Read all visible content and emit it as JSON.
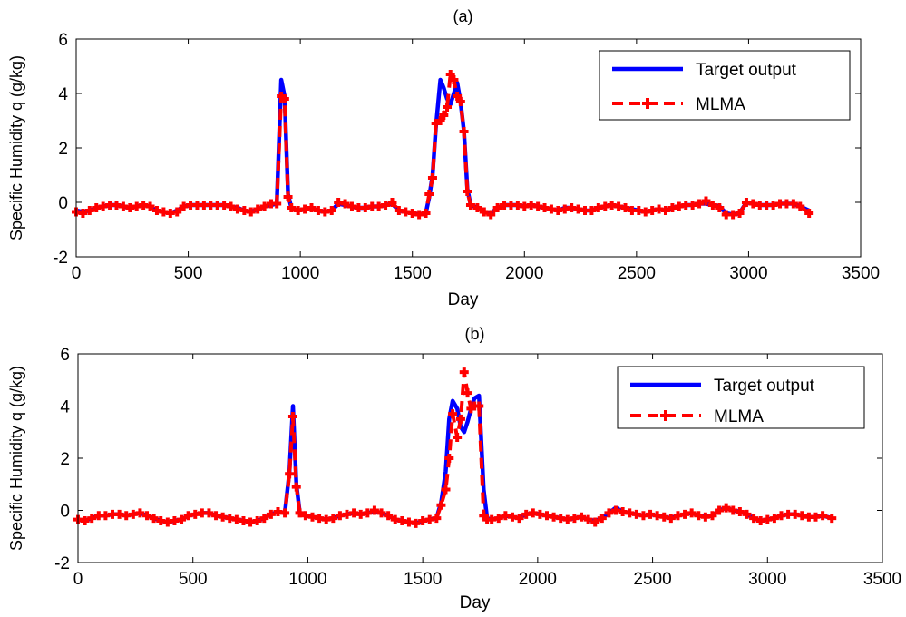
{
  "chart_data": [
    {
      "type": "line",
      "title": "(a)",
      "xlabel": "Day",
      "ylabel": "Specific Humidity q (g/kg)",
      "xlim": [
        0,
        3500
      ],
      "ylim": [
        -2,
        6
      ],
      "xticks": [
        0,
        500,
        1000,
        1500,
        2000,
        2500,
        3000,
        3500
      ],
      "yticks": [
        -2,
        0,
        2,
        4,
        6
      ],
      "legend_position": "top-right",
      "series": [
        {
          "name": "Target output",
          "color": "#0000ff",
          "style": "solid",
          "x": [
            0,
            30,
            60,
            90,
            120,
            150,
            180,
            210,
            240,
            270,
            300,
            330,
            360,
            390,
            420,
            450,
            480,
            510,
            540,
            570,
            600,
            630,
            660,
            690,
            720,
            750,
            780,
            810,
            840,
            870,
            895,
            915,
            930,
            945,
            960,
            990,
            1020,
            1050,
            1080,
            1110,
            1140,
            1170,
            1200,
            1230,
            1260,
            1290,
            1320,
            1350,
            1380,
            1410,
            1440,
            1470,
            1500,
            1530,
            1560,
            1575,
            1590,
            1605,
            1625,
            1640,
            1655,
            1670,
            1685,
            1700,
            1715,
            1730,
            1745,
            1760,
            1790,
            1820,
            1850,
            1880,
            1910,
            1940,
            1970,
            2000,
            2030,
            2060,
            2090,
            2120,
            2150,
            2180,
            2210,
            2240,
            2270,
            2300,
            2330,
            2360,
            2390,
            2420,
            2450,
            2480,
            2510,
            2540,
            2570,
            2600,
            2630,
            2660,
            2690,
            2720,
            2750,
            2780,
            2810,
            2840,
            2870,
            2900,
            2930,
            2960,
            2990,
            3020,
            3050,
            3080,
            3110,
            3140,
            3170,
            3200,
            3230,
            3270
          ],
          "y": [
            -0.3,
            -0.35,
            -0.3,
            -0.2,
            -0.15,
            -0.1,
            -0.1,
            -0.15,
            -0.2,
            -0.15,
            -0.1,
            -0.15,
            -0.3,
            -0.35,
            -0.4,
            -0.3,
            -0.15,
            -0.1,
            -0.1,
            -0.1,
            -0.1,
            -0.1,
            -0.1,
            -0.15,
            -0.2,
            -0.3,
            -0.35,
            -0.25,
            -0.15,
            -0.1,
            -0.05,
            4.5,
            3.9,
            0.3,
            -0.2,
            -0.3,
            -0.25,
            -0.2,
            -0.3,
            -0.35,
            -0.3,
            -0.05,
            -0.1,
            -0.15,
            -0.2,
            -0.2,
            -0.15,
            -0.15,
            -0.1,
            -0.05,
            -0.3,
            -0.35,
            -0.4,
            -0.45,
            -0.4,
            0.2,
            1.0,
            2.8,
            4.5,
            4.2,
            3.8,
            3.6,
            4.0,
            4.4,
            3.7,
            2.6,
            0.5,
            -0.1,
            -0.2,
            -0.35,
            -0.4,
            -0.2,
            -0.1,
            -0.1,
            -0.1,
            -0.15,
            -0.1,
            -0.15,
            -0.2,
            -0.25,
            -0.3,
            -0.2,
            -0.2,
            -0.25,
            -0.3,
            -0.3,
            -0.2,
            -0.15,
            -0.1,
            -0.15,
            -0.2,
            -0.25,
            -0.3,
            -0.35,
            -0.3,
            -0.25,
            -0.3,
            -0.2,
            -0.15,
            -0.1,
            -0.1,
            -0.05,
            -0.05,
            -0.1,
            -0.15,
            -0.4,
            -0.45,
            -0.4,
            0.0,
            -0.05,
            -0.1,
            -0.1,
            -0.1,
            -0.05,
            -0.05,
            -0.05,
            -0.15,
            -0.3
          ]
        },
        {
          "name": "MLMA",
          "color": "#ff0000",
          "style": "dash-marker",
          "x": [
            0,
            30,
            60,
            90,
            120,
            150,
            180,
            210,
            240,
            270,
            300,
            330,
            360,
            390,
            420,
            450,
            480,
            510,
            540,
            570,
            600,
            630,
            660,
            690,
            720,
            750,
            780,
            810,
            840,
            870,
            895,
            915,
            930,
            945,
            960,
            990,
            1020,
            1050,
            1080,
            1110,
            1140,
            1170,
            1200,
            1230,
            1260,
            1290,
            1320,
            1350,
            1380,
            1410,
            1440,
            1470,
            1500,
            1530,
            1560,
            1575,
            1590,
            1605,
            1625,
            1640,
            1655,
            1670,
            1685,
            1700,
            1715,
            1730,
            1745,
            1760,
            1790,
            1820,
            1850,
            1880,
            1910,
            1940,
            1970,
            2000,
            2030,
            2060,
            2090,
            2120,
            2150,
            2180,
            2210,
            2240,
            2270,
            2300,
            2330,
            2360,
            2390,
            2420,
            2450,
            2480,
            2510,
            2540,
            2570,
            2600,
            2630,
            2660,
            2690,
            2720,
            2750,
            2780,
            2810,
            2840,
            2870,
            2900,
            2930,
            2960,
            2990,
            3020,
            3050,
            3080,
            3110,
            3140,
            3170,
            3200,
            3230,
            3270
          ],
          "y": [
            -0.35,
            -0.4,
            -0.3,
            -0.2,
            -0.15,
            -0.1,
            -0.1,
            -0.15,
            -0.2,
            -0.15,
            -0.1,
            -0.15,
            -0.3,
            -0.35,
            -0.4,
            -0.35,
            -0.15,
            -0.1,
            -0.1,
            -0.1,
            -0.1,
            -0.1,
            -0.1,
            -0.15,
            -0.25,
            -0.3,
            -0.35,
            -0.25,
            -0.15,
            -0.05,
            -0.05,
            3.9,
            3.8,
            0.2,
            -0.2,
            -0.3,
            -0.25,
            -0.2,
            -0.3,
            -0.35,
            -0.3,
            0.0,
            -0.05,
            -0.15,
            -0.2,
            -0.2,
            -0.15,
            -0.15,
            -0.1,
            0.0,
            -0.3,
            -0.35,
            -0.4,
            -0.45,
            -0.4,
            0.3,
            0.9,
            2.9,
            3.0,
            3.2,
            3.5,
            4.7,
            4.5,
            3.9,
            3.7,
            2.6,
            0.4,
            -0.1,
            -0.2,
            -0.35,
            -0.45,
            -0.2,
            -0.1,
            -0.1,
            -0.1,
            -0.15,
            -0.1,
            -0.15,
            -0.2,
            -0.25,
            -0.3,
            -0.25,
            -0.2,
            -0.25,
            -0.3,
            -0.3,
            -0.2,
            -0.15,
            -0.1,
            -0.15,
            -0.2,
            -0.3,
            -0.3,
            -0.35,
            -0.3,
            -0.25,
            -0.3,
            -0.2,
            -0.15,
            -0.1,
            -0.1,
            -0.05,
            0.05,
            -0.1,
            -0.2,
            -0.45,
            -0.45,
            -0.4,
            0.0,
            -0.05,
            -0.1,
            -0.1,
            -0.1,
            -0.05,
            -0.05,
            -0.05,
            -0.15,
            -0.4
          ]
        }
      ]
    },
    {
      "type": "line",
      "title": "(b)",
      "xlabel": "Day",
      "ylabel": "Specific Humidity q (g/kg)",
      "xlim": [
        0,
        3500
      ],
      "ylim": [
        -2,
        6
      ],
      "xticks": [
        0,
        500,
        1000,
        1500,
        2000,
        2500,
        3000,
        3500
      ],
      "yticks": [
        -2,
        0,
        2,
        4,
        6
      ],
      "legend_position": "top-right",
      "series": [
        {
          "name": "Target output",
          "color": "#0000ff",
          "style": "solid",
          "x": [
            0,
            30,
            60,
            90,
            120,
            150,
            180,
            210,
            240,
            270,
            300,
            330,
            360,
            390,
            420,
            450,
            480,
            510,
            540,
            570,
            600,
            630,
            660,
            690,
            720,
            750,
            780,
            810,
            840,
            870,
            900,
            920,
            935,
            950,
            965,
            990,
            1020,
            1050,
            1080,
            1110,
            1140,
            1170,
            1200,
            1230,
            1260,
            1290,
            1320,
            1350,
            1380,
            1410,
            1440,
            1470,
            1500,
            1530,
            1560,
            1580,
            1600,
            1615,
            1630,
            1650,
            1665,
            1680,
            1695,
            1710,
            1725,
            1745,
            1765,
            1780,
            1800,
            1830,
            1860,
            1890,
            1920,
            1950,
            1980,
            2010,
            2040,
            2070,
            2100,
            2130,
            2160,
            2190,
            2220,
            2250,
            2280,
            2310,
            2340,
            2370,
            2400,
            2430,
            2460,
            2490,
            2520,
            2550,
            2580,
            2610,
            2640,
            2670,
            2700,
            2730,
            2760,
            2790,
            2820,
            2850,
            2880,
            2910,
            2940,
            2970,
            3000,
            3030,
            3060,
            3090,
            3120,
            3150,
            3180,
            3210,
            3240,
            3280
          ],
          "y": [
            -0.35,
            -0.4,
            -0.3,
            -0.2,
            -0.2,
            -0.15,
            -0.15,
            -0.2,
            -0.15,
            -0.1,
            -0.2,
            -0.3,
            -0.4,
            -0.45,
            -0.4,
            -0.35,
            -0.2,
            -0.15,
            -0.1,
            -0.1,
            -0.2,
            -0.25,
            -0.3,
            -0.35,
            -0.4,
            -0.45,
            -0.4,
            -0.3,
            -0.15,
            -0.05,
            -0.1,
            1.5,
            4.0,
            1.0,
            -0.1,
            -0.2,
            -0.25,
            -0.3,
            -0.35,
            -0.3,
            -0.2,
            -0.15,
            -0.1,
            -0.15,
            -0.1,
            -0.05,
            -0.1,
            -0.2,
            -0.35,
            -0.4,
            -0.45,
            -0.5,
            -0.4,
            -0.35,
            -0.3,
            0.3,
            1.5,
            3.5,
            4.2,
            3.9,
            3.2,
            3.0,
            3.4,
            3.9,
            4.3,
            4.4,
            0.8,
            -0.3,
            -0.35,
            -0.3,
            -0.2,
            -0.25,
            -0.3,
            -0.15,
            -0.1,
            -0.15,
            -0.2,
            -0.25,
            -0.3,
            -0.35,
            -0.3,
            -0.25,
            -0.35,
            -0.4,
            -0.3,
            -0.1,
            0.1,
            -0.05,
            -0.1,
            -0.15,
            -0.2,
            -0.15,
            -0.2,
            -0.25,
            -0.3,
            -0.2,
            -0.15,
            -0.1,
            -0.2,
            -0.25,
            -0.2,
            0.0,
            0.1,
            0.0,
            -0.05,
            -0.15,
            -0.3,
            -0.4,
            -0.35,
            -0.3,
            -0.2,
            -0.15,
            -0.15,
            -0.2,
            -0.25,
            -0.25,
            -0.2,
            -0.3
          ]
        },
        {
          "name": "MLMA",
          "color": "#ff0000",
          "style": "dash-marker",
          "x": [
            0,
            30,
            60,
            90,
            120,
            150,
            180,
            210,
            240,
            270,
            300,
            330,
            360,
            390,
            420,
            450,
            480,
            510,
            540,
            570,
            600,
            630,
            660,
            690,
            720,
            750,
            780,
            810,
            840,
            870,
            900,
            920,
            935,
            950,
            965,
            990,
            1020,
            1050,
            1080,
            1110,
            1140,
            1170,
            1200,
            1230,
            1260,
            1290,
            1320,
            1350,
            1380,
            1410,
            1440,
            1470,
            1500,
            1530,
            1560,
            1580,
            1600,
            1615,
            1630,
            1650,
            1665,
            1680,
            1695,
            1710,
            1725,
            1745,
            1765,
            1780,
            1800,
            1830,
            1860,
            1890,
            1920,
            1950,
            1980,
            2010,
            2040,
            2070,
            2100,
            2130,
            2160,
            2190,
            2220,
            2250,
            2280,
            2310,
            2340,
            2370,
            2400,
            2430,
            2460,
            2490,
            2520,
            2550,
            2580,
            2610,
            2640,
            2670,
            2700,
            2730,
            2760,
            2790,
            2820,
            2850,
            2880,
            2910,
            2940,
            2970,
            3000,
            3030,
            3060,
            3090,
            3120,
            3150,
            3180,
            3210,
            3240,
            3280
          ],
          "y": [
            -0.35,
            -0.4,
            -0.3,
            -0.2,
            -0.2,
            -0.15,
            -0.15,
            -0.2,
            -0.15,
            -0.1,
            -0.2,
            -0.3,
            -0.4,
            -0.45,
            -0.4,
            -0.35,
            -0.2,
            -0.15,
            -0.1,
            -0.1,
            -0.2,
            -0.25,
            -0.3,
            -0.35,
            -0.4,
            -0.45,
            -0.4,
            -0.3,
            -0.15,
            -0.05,
            -0.1,
            1.4,
            3.6,
            0.9,
            -0.1,
            -0.2,
            -0.25,
            -0.3,
            -0.35,
            -0.3,
            -0.2,
            -0.15,
            -0.1,
            -0.15,
            -0.1,
            0.0,
            -0.1,
            -0.2,
            -0.35,
            -0.4,
            -0.45,
            -0.5,
            -0.4,
            -0.35,
            -0.3,
            0.2,
            0.8,
            2.0,
            3.7,
            2.8,
            3.5,
            5.3,
            4.5,
            3.9,
            4.0,
            4.0,
            -0.2,
            -0.35,
            -0.35,
            -0.3,
            -0.2,
            -0.25,
            -0.3,
            -0.15,
            -0.1,
            -0.15,
            -0.2,
            -0.25,
            -0.3,
            -0.35,
            -0.3,
            -0.25,
            -0.35,
            -0.45,
            -0.3,
            -0.1,
            0.0,
            -0.05,
            -0.1,
            -0.15,
            -0.2,
            -0.15,
            -0.2,
            -0.25,
            -0.3,
            -0.2,
            -0.15,
            -0.1,
            -0.2,
            -0.25,
            -0.2,
            0.0,
            0.1,
            0.0,
            -0.05,
            -0.15,
            -0.3,
            -0.4,
            -0.35,
            -0.3,
            -0.2,
            -0.15,
            -0.15,
            -0.2,
            -0.25,
            -0.25,
            -0.2,
            -0.3
          ]
        }
      ]
    }
  ]
}
